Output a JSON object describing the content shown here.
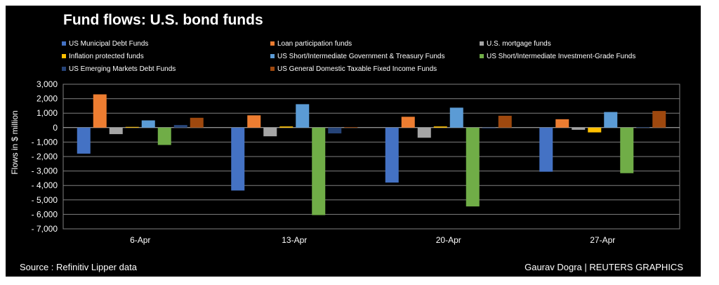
{
  "chart_data": {
    "type": "bar",
    "title": "Fund flows: U.S. bond funds",
    "ylabel": "Flows in $ million",
    "xlabel": "",
    "ylim": [
      -7000,
      3000
    ],
    "yticks": [
      3000,
      2000,
      1000,
      0,
      -1000,
      -2000,
      -3000,
      -4000,
      -5000,
      -6000,
      -7000
    ],
    "ytick_labels": [
      "3,000",
      "2,000",
      "1,000",
      "0",
      "- 1,000",
      "- 2,000",
      "- 3,000",
      "- 4,000",
      "- 5,000",
      "- 6,000",
      "- 7,000"
    ],
    "grid": true,
    "legend_position": "top",
    "categories": [
      "6-Apr",
      "13-Apr",
      "20-Apr",
      "27-Apr"
    ],
    "series": [
      {
        "name": "US Municipal Debt Funds",
        "color": "#4472c4",
        "values": [
          -1800,
          -4350,
          -3800,
          -3050
        ]
      },
      {
        "name": "Loan participation funds",
        "color": "#ed7d31",
        "values": [
          2300,
          850,
          750,
          580
        ]
      },
      {
        "name": "U.S. mortgage funds",
        "color": "#a5a5a5",
        "values": [
          -450,
          -600,
          -700,
          -150
        ]
      },
      {
        "name": "Inflation protected funds",
        "color": "#ffc000",
        "values": [
          50,
          80,
          80,
          -330
        ]
      },
      {
        "name": "US Short/Intermediate Government & Treasury Funds",
        "color": "#5b9bd5",
        "values": [
          500,
          1620,
          1380,
          1080
        ]
      },
      {
        "name": "US Short/Intermediate Investment-Grade Funds",
        "color": "#70ad47",
        "values": [
          -1200,
          -6050,
          -5450,
          -3150
        ]
      },
      {
        "name": "US Emerging Markets Debt Funds",
        "color": "#264478",
        "values": [
          180,
          -400,
          -50,
          30
        ]
      },
      {
        "name": "US General Domestic Taxable Fixed Income Funds",
        "color": "#9e480e",
        "values": [
          680,
          30,
          820,
          1150
        ]
      }
    ]
  },
  "footer": {
    "source": "Source : Refinitiv Lipper data",
    "credit": "Gaurav Dogra | REUTERS GRAPHICS"
  }
}
